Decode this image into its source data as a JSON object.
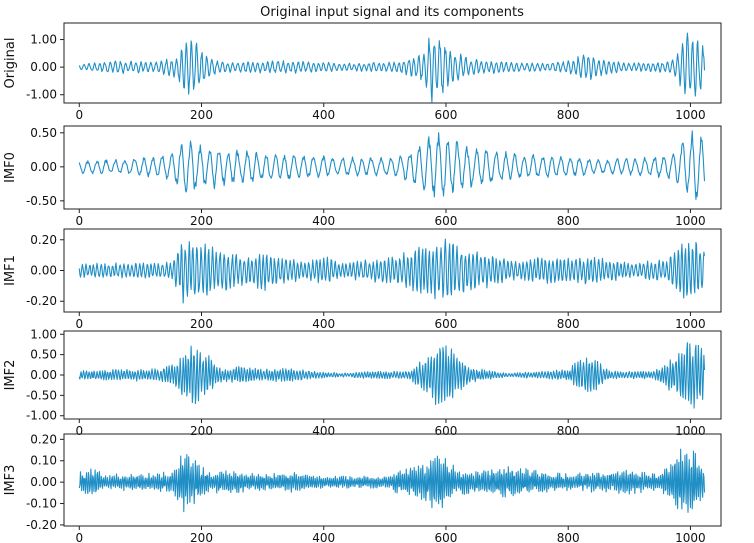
{
  "figure_title": "Original input signal and its components",
  "colors": {
    "line": "#1f8fc6",
    "axes": "#222222"
  },
  "chart_data": [
    {
      "type": "line",
      "ylabel": "Original",
      "xlim": [
        -25,
        1050
      ],
      "ylim": [
        -1.3,
        1.6
      ],
      "xticks": [
        0,
        200,
        400,
        600,
        800,
        1000
      ],
      "xtick_labels": [
        "0",
        "200",
        "400",
        "600",
        "800",
        "1000"
      ],
      "yticks": [
        1.0,
        0.0,
        -1.0
      ],
      "ytick_labels": [
        "1.00",
        "0.00",
        "-1.00"
      ],
      "n_samples": 1024,
      "envelope": [
        [
          0,
          0.12
        ],
        [
          60,
          0.25
        ],
        [
          120,
          0.18
        ],
        [
          160,
          0.4
        ],
        [
          175,
          1.15
        ],
        [
          190,
          1.0
        ],
        [
          205,
          0.5
        ],
        [
          230,
          0.2
        ],
        [
          280,
          0.2
        ],
        [
          330,
          0.25
        ],
        [
          380,
          0.2
        ],
        [
          450,
          0.15
        ],
        [
          520,
          0.2
        ],
        [
          560,
          0.5
        ],
        [
          575,
          1.3
        ],
        [
          590,
          1.15
        ],
        [
          605,
          0.7
        ],
        [
          640,
          0.3
        ],
        [
          700,
          0.2
        ],
        [
          760,
          0.15
        ],
        [
          800,
          0.25
        ],
        [
          830,
          0.55
        ],
        [
          850,
          0.35
        ],
        [
          900,
          0.15
        ],
        [
          960,
          0.2
        ],
        [
          980,
          0.5
        ],
        [
          995,
          1.45
        ],
        [
          1010,
          1.2
        ],
        [
          1023,
          0.8
        ]
      ],
      "cycles_per_sample": 0.12
    },
    {
      "type": "line",
      "ylabel": "IMF0",
      "xlim": [
        -25,
        1050
      ],
      "ylim": [
        -0.62,
        0.6
      ],
      "xticks": [
        0,
        200,
        400,
        600,
        800,
        1000
      ],
      "xtick_labels": [
        "0",
        "200",
        "400",
        "600",
        "800",
        "1000"
      ],
      "yticks": [
        0.5,
        0.0,
        -0.5
      ],
      "ytick_labels": [
        "0.50",
        "0.00",
        "-0.50"
      ],
      "n_samples": 1024,
      "envelope": [
        [
          0,
          0.1
        ],
        [
          80,
          0.12
        ],
        [
          150,
          0.2
        ],
        [
          175,
          0.45
        ],
        [
          190,
          0.42
        ],
        [
          230,
          0.3
        ],
        [
          280,
          0.25
        ],
        [
          330,
          0.2
        ],
        [
          380,
          0.18
        ],
        [
          430,
          0.15
        ],
        [
          520,
          0.15
        ],
        [
          560,
          0.35
        ],
        [
          585,
          0.55
        ],
        [
          610,
          0.45
        ],
        [
          650,
          0.3
        ],
        [
          720,
          0.2
        ],
        [
          800,
          0.15
        ],
        [
          860,
          0.12
        ],
        [
          920,
          0.15
        ],
        [
          970,
          0.2
        ],
        [
          1000,
          0.55
        ],
        [
          1015,
          0.55
        ],
        [
          1023,
          0.4
        ]
      ],
      "cycles_per_sample": 0.065
    },
    {
      "type": "line",
      "ylabel": "IMF1",
      "xlim": [
        -25,
        1050
      ],
      "ylim": [
        -0.27,
        0.27
      ],
      "xticks": [
        0,
        200,
        400,
        600,
        800,
        1000
      ],
      "xtick_labels": [
        "0",
        "200",
        "400",
        "600",
        "800",
        "1000"
      ],
      "yticks": [
        0.2,
        0.0,
        -0.2
      ],
      "ytick_labels": [
        "0.20",
        "0.00",
        "-0.20"
      ],
      "n_samples": 1024,
      "envelope": [
        [
          0,
          0.05
        ],
        [
          80,
          0.05
        ],
        [
          150,
          0.06
        ],
        [
          170,
          0.22
        ],
        [
          200,
          0.2
        ],
        [
          240,
          0.14
        ],
        [
          270,
          0.1
        ],
        [
          300,
          0.14
        ],
        [
          340,
          0.08
        ],
        [
          380,
          0.07
        ],
        [
          400,
          0.1
        ],
        [
          430,
          0.05
        ],
        [
          520,
          0.1
        ],
        [
          560,
          0.18
        ],
        [
          600,
          0.22
        ],
        [
          640,
          0.15
        ],
        [
          680,
          0.1
        ],
        [
          720,
          0.06
        ],
        [
          760,
          0.1
        ],
        [
          800,
          0.08
        ],
        [
          840,
          0.1
        ],
        [
          900,
          0.05
        ],
        [
          960,
          0.08
        ],
        [
          990,
          0.22
        ],
        [
          1005,
          0.22
        ],
        [
          1023,
          0.18
        ]
      ],
      "cycles_per_sample": 0.16
    },
    {
      "type": "line",
      "ylabel": "IMF2",
      "xlim": [
        -25,
        1050
      ],
      "ylim": [
        -1.08,
        1.08
      ],
      "xticks": [
        0,
        200,
        400,
        600,
        800,
        1000
      ],
      "xtick_labels": [
        "0",
        "200",
        "400",
        "600",
        "800",
        "1000"
      ],
      "yticks": [
        1.0,
        0.5,
        0.0,
        -0.5,
        -1.0
      ],
      "ytick_labels": [
        "1.00",
        "0.50",
        "0.00",
        "-0.50",
        "-1.00"
      ],
      "n_samples": 1024,
      "envelope": [
        [
          0,
          0.12
        ],
        [
          60,
          0.15
        ],
        [
          130,
          0.15
        ],
        [
          160,
          0.35
        ],
        [
          185,
          0.85
        ],
        [
          205,
          0.6
        ],
        [
          235,
          0.15
        ],
        [
          260,
          0.25
        ],
        [
          300,
          0.15
        ],
        [
          350,
          0.2
        ],
        [
          380,
          0.1
        ],
        [
          430,
          0.05
        ],
        [
          480,
          0.1
        ],
        [
          540,
          0.1
        ],
        [
          570,
          0.5
        ],
        [
          590,
          0.9
        ],
        [
          610,
          0.7
        ],
        [
          640,
          0.2
        ],
        [
          700,
          0.05
        ],
        [
          760,
          0.1
        ],
        [
          800,
          0.15
        ],
        [
          820,
          0.45
        ],
        [
          840,
          0.45
        ],
        [
          870,
          0.1
        ],
        [
          940,
          0.1
        ],
        [
          975,
          0.5
        ],
        [
          995,
          1.0
        ],
        [
          1015,
          0.8
        ],
        [
          1023,
          0.6
        ]
      ],
      "cycles_per_sample": 0.22
    },
    {
      "type": "line",
      "ylabel": "IMF3",
      "xlim": [
        -25,
        1050
      ],
      "ylim": [
        -0.205,
        0.225
      ],
      "xticks": [
        0,
        200,
        400,
        600,
        800,
        1000
      ],
      "xtick_labels": [
        "0",
        "200",
        "400",
        "600",
        "800",
        "1000"
      ],
      "yticks": [
        0.2,
        0.1,
        0.0,
        -0.1,
        -0.2
      ],
      "ytick_labels": [
        "0.20",
        "0.10",
        "0.00",
        "-0.10",
        "-0.20"
      ],
      "n_samples": 1024,
      "envelope": [
        [
          0,
          0.05
        ],
        [
          20,
          0.08
        ],
        [
          40,
          0.04
        ],
        [
          100,
          0.04
        ],
        [
          150,
          0.05
        ],
        [
          170,
          0.15
        ],
        [
          185,
          0.12
        ],
        [
          210,
          0.05
        ],
        [
          250,
          0.06
        ],
        [
          300,
          0.04
        ],
        [
          350,
          0.05
        ],
        [
          400,
          0.03
        ],
        [
          500,
          0.03
        ],
        [
          560,
          0.1
        ],
        [
          580,
          0.14
        ],
        [
          600,
          0.13
        ],
        [
          620,
          0.06
        ],
        [
          660,
          0.06
        ],
        [
          700,
          0.08
        ],
        [
          740,
          0.06
        ],
        [
          800,
          0.04
        ],
        [
          850,
          0.05
        ],
        [
          900,
          0.06
        ],
        [
          950,
          0.04
        ],
        [
          990,
          0.18
        ],
        [
          1005,
          0.15
        ],
        [
          1023,
          0.1
        ]
      ],
      "cycles_per_sample": 0.3
    }
  ]
}
